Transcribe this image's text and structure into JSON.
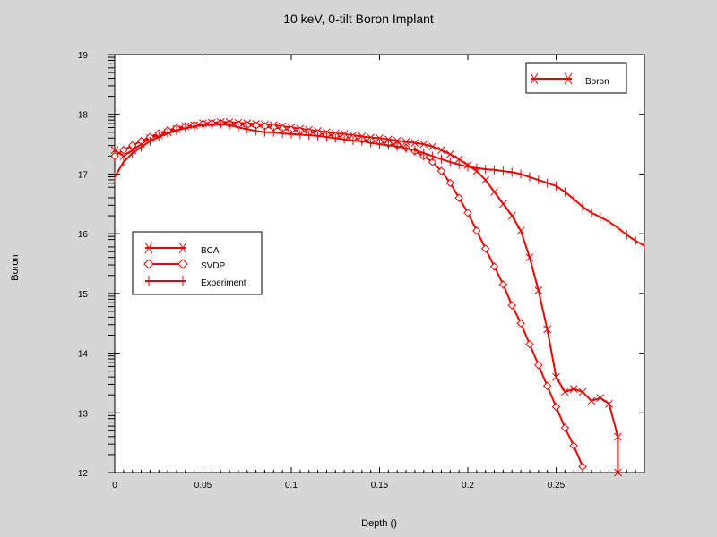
{
  "chart_data": {
    "type": "line",
    "title": "10 keV, 0-tilt Boron Implant",
    "xlabel": "Depth ()",
    "ylabel": "Boron",
    "xlim": [
      0,
      0.3
    ],
    "ylim": [
      12,
      19
    ],
    "x_ticks": [
      0,
      0.05,
      0.1,
      0.15,
      0.2,
      0.25
    ],
    "x_tick_labels": [
      "0",
      "0.05",
      "0.1",
      "0.15",
      "0.2",
      "0.25"
    ],
    "y_ticks": [
      12,
      13,
      14,
      15,
      16,
      17,
      18,
      19
    ],
    "y_tick_labels": [
      "12",
      "13",
      "14",
      "15",
      "16",
      "17",
      "18",
      "19"
    ],
    "grid": false,
    "legends": [
      {
        "placement": "top-right",
        "entries": [
          "Boron"
        ]
      },
      {
        "placement": "center-left",
        "entries": [
          "BCA",
          "SVDP",
          "Experiment"
        ]
      }
    ],
    "series": [
      {
        "name": "BCA",
        "color": "#ee0000",
        "marker": "x",
        "x": [
          0.0,
          0.005,
          0.01,
          0.015,
          0.02,
          0.025,
          0.03,
          0.035,
          0.04,
          0.045,
          0.05,
          0.055,
          0.06,
          0.065,
          0.07,
          0.075,
          0.08,
          0.085,
          0.09,
          0.095,
          0.1,
          0.105,
          0.11,
          0.115,
          0.12,
          0.125,
          0.13,
          0.135,
          0.14,
          0.145,
          0.15,
          0.155,
          0.16,
          0.165,
          0.17,
          0.175,
          0.18,
          0.185,
          0.19,
          0.195,
          0.2,
          0.205,
          0.21,
          0.215,
          0.22,
          0.225,
          0.23,
          0.235,
          0.24,
          0.245,
          0.25,
          0.255,
          0.26,
          0.265,
          0.27,
          0.275,
          0.28,
          0.285,
          0.285
        ],
        "values": [
          17.4,
          17.3,
          17.4,
          17.5,
          17.6,
          17.65,
          17.7,
          17.75,
          17.8,
          17.82,
          17.85,
          17.86,
          17.87,
          17.87,
          17.86,
          17.85,
          17.84,
          17.83,
          17.82,
          17.8,
          17.78,
          17.76,
          17.74,
          17.72,
          17.7,
          17.68,
          17.67,
          17.65,
          17.63,
          17.61,
          17.6,
          17.58,
          17.56,
          17.54,
          17.52,
          17.5,
          17.46,
          17.4,
          17.33,
          17.25,
          17.15,
          17.05,
          16.9,
          16.7,
          16.5,
          16.3,
          16.05,
          15.6,
          15.05,
          14.4,
          13.6,
          13.35,
          13.4,
          13.35,
          13.2,
          13.25,
          13.15,
          12.6,
          12.0
        ]
      },
      {
        "name": "SVDP",
        "color": "#ee0000",
        "marker": "diamond",
        "x": [
          0.0,
          0.005,
          0.01,
          0.015,
          0.02,
          0.025,
          0.03,
          0.035,
          0.04,
          0.045,
          0.05,
          0.055,
          0.06,
          0.065,
          0.07,
          0.075,
          0.08,
          0.085,
          0.09,
          0.095,
          0.1,
          0.105,
          0.11,
          0.115,
          0.12,
          0.125,
          0.13,
          0.135,
          0.14,
          0.145,
          0.15,
          0.155,
          0.16,
          0.165,
          0.17,
          0.175,
          0.18,
          0.185,
          0.19,
          0.195,
          0.2,
          0.205,
          0.21,
          0.215,
          0.22,
          0.225,
          0.23,
          0.235,
          0.24,
          0.245,
          0.25,
          0.255,
          0.26,
          0.265
        ],
        "values": [
          17.3,
          17.4,
          17.48,
          17.55,
          17.62,
          17.68,
          17.73,
          17.77,
          17.8,
          17.82,
          17.84,
          17.85,
          17.85,
          17.84,
          17.83,
          17.82,
          17.81,
          17.8,
          17.78,
          17.76,
          17.74,
          17.72,
          17.7,
          17.68,
          17.66,
          17.64,
          17.62,
          17.6,
          17.58,
          17.56,
          17.54,
          17.51,
          17.48,
          17.44,
          17.38,
          17.3,
          17.2,
          17.05,
          16.85,
          16.6,
          16.35,
          16.05,
          15.75,
          15.45,
          15.15,
          14.8,
          14.5,
          14.15,
          13.8,
          13.45,
          13.1,
          12.75,
          12.45,
          12.1
        ]
      },
      {
        "name": "Experiment",
        "color": "#ee0000",
        "marker": "plus",
        "x": [
          0.0,
          0.005,
          0.01,
          0.015,
          0.02,
          0.025,
          0.03,
          0.035,
          0.04,
          0.045,
          0.05,
          0.055,
          0.06,
          0.065,
          0.07,
          0.075,
          0.08,
          0.085,
          0.09,
          0.095,
          0.1,
          0.105,
          0.11,
          0.115,
          0.12,
          0.125,
          0.13,
          0.135,
          0.14,
          0.145,
          0.15,
          0.155,
          0.16,
          0.165,
          0.17,
          0.175,
          0.18,
          0.185,
          0.19,
          0.195,
          0.2,
          0.205,
          0.21,
          0.215,
          0.22,
          0.225,
          0.23,
          0.235,
          0.24,
          0.245,
          0.25,
          0.255,
          0.26,
          0.265,
          0.27,
          0.275,
          0.28,
          0.285,
          0.29,
          0.295,
          0.3
        ],
        "values": [
          16.95,
          17.2,
          17.35,
          17.45,
          17.55,
          17.62,
          17.68,
          17.73,
          17.77,
          17.8,
          17.82,
          17.83,
          17.84,
          17.82,
          17.78,
          17.75,
          17.72,
          17.7,
          17.7,
          17.68,
          17.67,
          17.66,
          17.65,
          17.64,
          17.62,
          17.6,
          17.58,
          17.56,
          17.55,
          17.52,
          17.5,
          17.48,
          17.46,
          17.43,
          17.4,
          17.35,
          17.3,
          17.25,
          17.2,
          17.16,
          17.12,
          17.1,
          17.08,
          17.07,
          17.05,
          17.03,
          17.0,
          16.95,
          16.9,
          16.85,
          16.8,
          16.7,
          16.58,
          16.45,
          16.35,
          16.28,
          16.2,
          16.1,
          15.98,
          15.88,
          15.8
        ]
      }
    ]
  }
}
